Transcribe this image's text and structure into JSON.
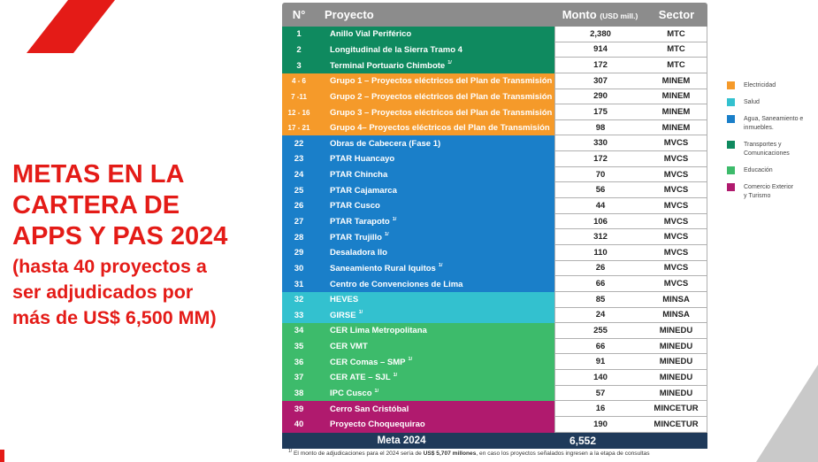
{
  "colors": {
    "electricidad": "#f59a2a",
    "salud": "#33c1cf",
    "agua": "#1a7fc9",
    "transportes": "#0f8a5f",
    "educacion": "#3dbb6b",
    "comercio": "#b01a6e",
    "accent_red": "#e41b17",
    "header_grey": "#8c8c8c",
    "footer_navy": "#1f3a5a"
  },
  "left": {
    "title": "METAS EN LA\nCARTERA DE\nAPPS Y PAS 2024",
    "subtitle": "(hasta 40 proyectos a\nser adjudicados por\nmás de US$ 6,500 MM)"
  },
  "header": {
    "num": "N°",
    "proyecto": "Proyecto",
    "monto": "Monto",
    "monto_unit": "(USD mill.)",
    "sector": "Sector"
  },
  "rows": [
    {
      "n": "1",
      "proyecto": "Anillo Vial Periférico",
      "sup": "",
      "monto": "2,380",
      "sector": "MTC",
      "cat": "transportes"
    },
    {
      "n": "2",
      "proyecto": "Longitudinal de la Sierra Tramo 4",
      "sup": "",
      "monto": "914",
      "sector": "MTC",
      "cat": "transportes"
    },
    {
      "n": "3",
      "proyecto": "Terminal Portuario Chimbote",
      "sup": "1/",
      "monto": "172",
      "sector": "MTC",
      "cat": "transportes"
    },
    {
      "n": "4 - 6",
      "proyecto": "Grupo 1 – Proyectos eléctricos del Plan de Transmisión",
      "sup": "",
      "monto": "307",
      "sector": "MINEM",
      "cat": "electricidad"
    },
    {
      "n": "7 -11",
      "proyecto": "Grupo 2 – Proyectos eléctricos del Plan de Transmisión",
      "sup": "",
      "monto": "290",
      "sector": "MINEM",
      "cat": "electricidad"
    },
    {
      "n": "12 - 16",
      "proyecto": "Grupo 3 – Proyectos eléctricos del Plan de Transmisión",
      "sup": "",
      "monto": "175",
      "sector": "MINEM",
      "cat": "electricidad"
    },
    {
      "n": "17 - 21",
      "proyecto": "Grupo 4– Proyectos eléctricos del Plan de Transmisión",
      "sup": "",
      "monto": "98",
      "sector": "MINEM",
      "cat": "electricidad"
    },
    {
      "n": "22",
      "proyecto": "Obras de Cabecera (Fase 1)",
      "sup": "",
      "monto": "330",
      "sector": "MVCS",
      "cat": "agua"
    },
    {
      "n": "23",
      "proyecto": "PTAR Huancayo",
      "sup": "",
      "monto": "172",
      "sector": "MVCS",
      "cat": "agua"
    },
    {
      "n": "24",
      "proyecto": "PTAR Chincha",
      "sup": "",
      "monto": "70",
      "sector": "MVCS",
      "cat": "agua"
    },
    {
      "n": "25",
      "proyecto": "PTAR Cajamarca",
      "sup": "",
      "monto": "56",
      "sector": "MVCS",
      "cat": "agua"
    },
    {
      "n": "26",
      "proyecto": "PTAR Cusco",
      "sup": "",
      "monto": "44",
      "sector": "MVCS",
      "cat": "agua"
    },
    {
      "n": "27",
      "proyecto": "PTAR Tarapoto",
      "sup": "1/",
      "monto": "106",
      "sector": "MVCS",
      "cat": "agua"
    },
    {
      "n": "28",
      "proyecto": "PTAR Trujillo",
      "sup": "1/",
      "monto": "312",
      "sector": "MVCS",
      "cat": "agua"
    },
    {
      "n": "29",
      "proyecto": "Desaladora Ilo",
      "sup": "",
      "monto": "110",
      "sector": "MVCS",
      "cat": "agua"
    },
    {
      "n": "30",
      "proyecto": "Saneamiento Rural Iquitos",
      "sup": "1/",
      "monto": "26",
      "sector": "MVCS",
      "cat": "agua"
    },
    {
      "n": "31",
      "proyecto": "Centro de Convenciones de Lima",
      "sup": "",
      "monto": "66",
      "sector": "MVCS",
      "cat": "agua"
    },
    {
      "n": "32",
      "proyecto": "HEVES",
      "sup": "",
      "monto": "85",
      "sector": "MINSA",
      "cat": "salud"
    },
    {
      "n": "33",
      "proyecto": "GIRSE",
      "sup": "1/",
      "monto": "24",
      "sector": "MINSA",
      "cat": "salud"
    },
    {
      "n": "34",
      "proyecto": "CER Lima Metropolitana",
      "sup": "",
      "monto": "255",
      "sector": "MINEDU",
      "cat": "educacion"
    },
    {
      "n": "35",
      "proyecto": "CER VMT",
      "sup": "",
      "monto": "66",
      "sector": "MINEDU",
      "cat": "educacion"
    },
    {
      "n": "36",
      "proyecto": "CER Comas – SMP",
      "sup": "1/",
      "monto": "91",
      "sector": "MINEDU",
      "cat": "educacion"
    },
    {
      "n": "37",
      "proyecto": "CER ATE – SJL",
      "sup": "1/",
      "monto": "140",
      "sector": "MINEDU",
      "cat": "educacion"
    },
    {
      "n": "38",
      "proyecto": "IPC Cusco",
      "sup": "1/",
      "monto": "57",
      "sector": "MINEDU",
      "cat": "educacion"
    },
    {
      "n": "39",
      "proyecto": "Cerro San Cristóbal",
      "sup": "",
      "monto": "16",
      "sector": "MINCETUR",
      "cat": "comercio"
    },
    {
      "n": "40",
      "proyecto": "Proyecto Choquequirao",
      "sup": "",
      "monto": "190",
      "sector": "MINCETUR",
      "cat": "comercio"
    }
  ],
  "footer": {
    "label": "Meta 2024",
    "total": "6,552"
  },
  "footnote": {
    "sup": "1/",
    "text_before": " El monto de adjudicaciones para el 2024 sería de ",
    "text_bold": "US$ 5,707 millones",
    "text_after": ", en caso los proyectos señalados ingresen a la etapa de consultas"
  },
  "legend": [
    {
      "label": "Electricidad",
      "cat": "electricidad"
    },
    {
      "label": "Salud",
      "cat": "salud"
    },
    {
      "label": "Agua,  Saneamiento e\ninmuebles.",
      "cat": "agua"
    },
    {
      "label": "Transportes y\nComunicaciones",
      "cat": "transportes"
    },
    {
      "label": "Educación",
      "cat": "educacion"
    },
    {
      "label": "Comercio Exterior\ny  Turismo",
      "cat": "comercio"
    }
  ]
}
